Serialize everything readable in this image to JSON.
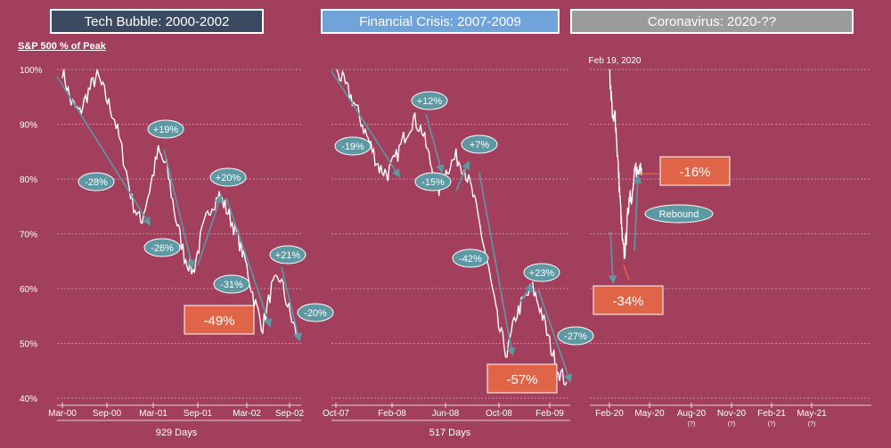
{
  "headers": [
    {
      "label": "Tech Bubble: 2000-2002",
      "color": "#3b4a61"
    },
    {
      "label": "Financial Crisis: 2007-2009",
      "color": "#6fa3d9"
    },
    {
      "label": "Coronavirus: 2020-??",
      "color": "#9c9c9c"
    }
  ],
  "y_axis_title": "S&P 500 % of Peak",
  "colors": {
    "background": "#a13f5d",
    "line": "#ffffff",
    "arrow": "#5e98a3",
    "bubble": "#5e98a3",
    "callout": "#e06448",
    "grid": "#d8a6b6"
  },
  "chart_data": [
    {
      "type": "line",
      "title": "Tech Bubble: 2000-2002",
      "ylabel": "S&P 500 % of Peak",
      "ylim": [
        40,
        100
      ],
      "y_ticks": [
        "40%",
        "50%",
        "60%",
        "70%",
        "80%",
        "90%",
        "100%"
      ],
      "x_ticks": [
        "Mar-00",
        "Sep-00",
        "Mar-01",
        "Sep-01",
        "Mar-02",
        "Sep-02"
      ],
      "xlabel": "929 Days",
      "series": [
        {
          "values": [
            100,
            94,
            92,
            96,
            99,
            95,
            91,
            84,
            76,
            72,
            78,
            85,
            82,
            73,
            66,
            63,
            70,
            75,
            77,
            74,
            70,
            65,
            58,
            53,
            60,
            62,
            56,
            51
          ]
        }
      ],
      "annotations": [
        {
          "text": "-28%",
          "style": "bubble"
        },
        {
          "text": "+19%",
          "style": "bubble"
        },
        {
          "text": "-26%",
          "style": "bubble"
        },
        {
          "text": "+20%",
          "style": "bubble"
        },
        {
          "text": "-31%",
          "style": "bubble"
        },
        {
          "text": "+21%",
          "style": "bubble"
        },
        {
          "text": "-20%",
          "style": "bubble"
        },
        {
          "text": "-49%",
          "style": "callout"
        }
      ]
    },
    {
      "type": "line",
      "title": "Financial Crisis: 2007-2009",
      "ylim": [
        40,
        100
      ],
      "x_ticks": [
        "Oct-07",
        "Feb-08",
        "Jun-08",
        "Oct-08",
        "Feb-09"
      ],
      "xlabel": "517 Days",
      "series": [
        {
          "values": [
            100,
            97,
            94,
            90,
            86,
            82,
            81,
            84,
            88,
            91,
            89,
            83,
            78,
            82,
            84,
            82,
            77,
            70,
            62,
            53,
            48,
            55,
            58,
            60,
            56,
            50,
            45,
            43
          ]
        }
      ],
      "annotations": [
        {
          "text": "-19%",
          "style": "bubble"
        },
        {
          "text": "+12%",
          "style": "bubble"
        },
        {
          "text": "-15%",
          "style": "bubble"
        },
        {
          "text": "+7%",
          "style": "bubble"
        },
        {
          "text": "-42%",
          "style": "bubble"
        },
        {
          "text": "+23%",
          "style": "bubble"
        },
        {
          "text": "-27%",
          "style": "bubble"
        },
        {
          "text": "-57%",
          "style": "callout"
        }
      ]
    },
    {
      "type": "line",
      "title": "Coronavirus: 2020-??",
      "ylim": [
        40,
        100
      ],
      "x_ticks": [
        "Feb-20",
        "May-20",
        "Aug-20",
        "Nov-20",
        "Feb-21",
        "May-21"
      ],
      "x_tick_sub": [
        "",
        "",
        "(?)",
        "(?)",
        "(?)",
        "(?)"
      ],
      "start_label": "Feb 19, 2020",
      "series": [
        {
          "values": [
            100,
            95,
            90,
            92,
            86,
            80,
            74,
            68,
            66,
            70,
            75,
            78,
            76,
            80,
            82,
            81,
            83,
            82
          ]
        }
      ],
      "annotations": [
        {
          "text": "-16%",
          "style": "callout"
        },
        {
          "text": "Rebound",
          "style": "bubble"
        },
        {
          "text": "-34%",
          "style": "callout"
        }
      ]
    }
  ]
}
